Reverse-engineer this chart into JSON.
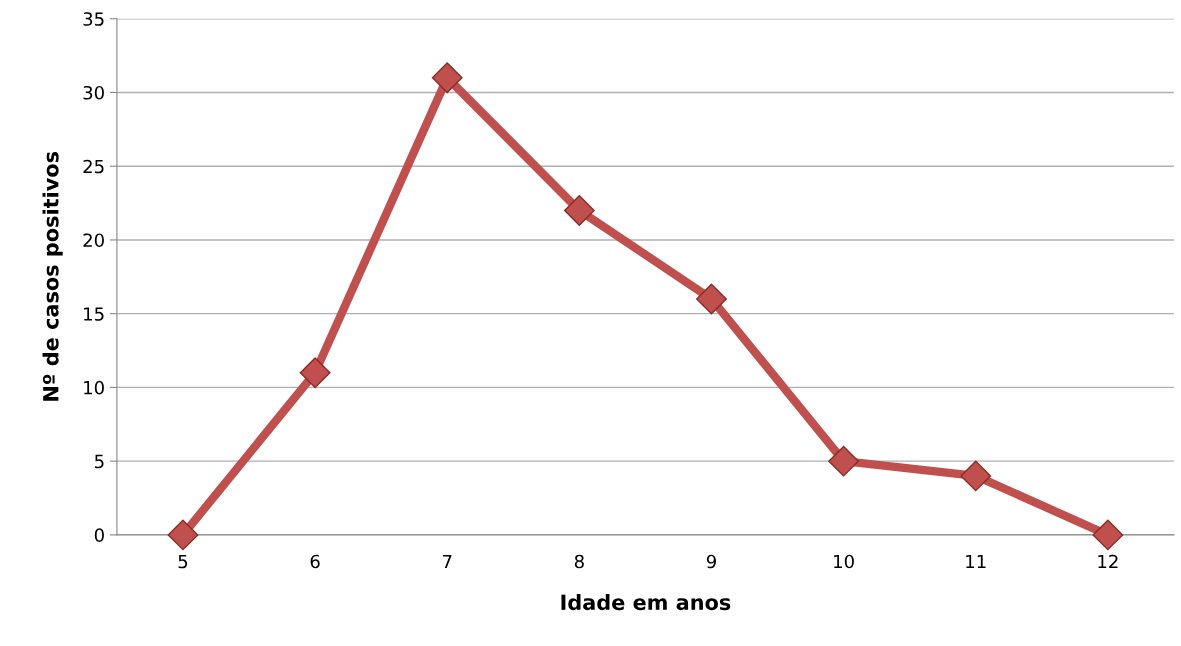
{
  "chart_data": {
    "type": "line",
    "xlabel": "Idade em anos",
    "ylabel": "Nº de casos positivos",
    "categories": [
      "5",
      "6",
      "7",
      "8",
      "9",
      "10",
      "11",
      "12"
    ],
    "series": [
      {
        "color": "#c0504d",
        "values": [
          0,
          11,
          31,
          22,
          16,
          5,
          4,
          0
        ]
      }
    ],
    "ylim": [
      0,
      35
    ],
    "yticks": [
      0,
      5,
      10,
      15,
      20,
      25,
      30,
      35
    ],
    "grid": "y",
    "marker": "diamond",
    "line_style": "solid"
  }
}
